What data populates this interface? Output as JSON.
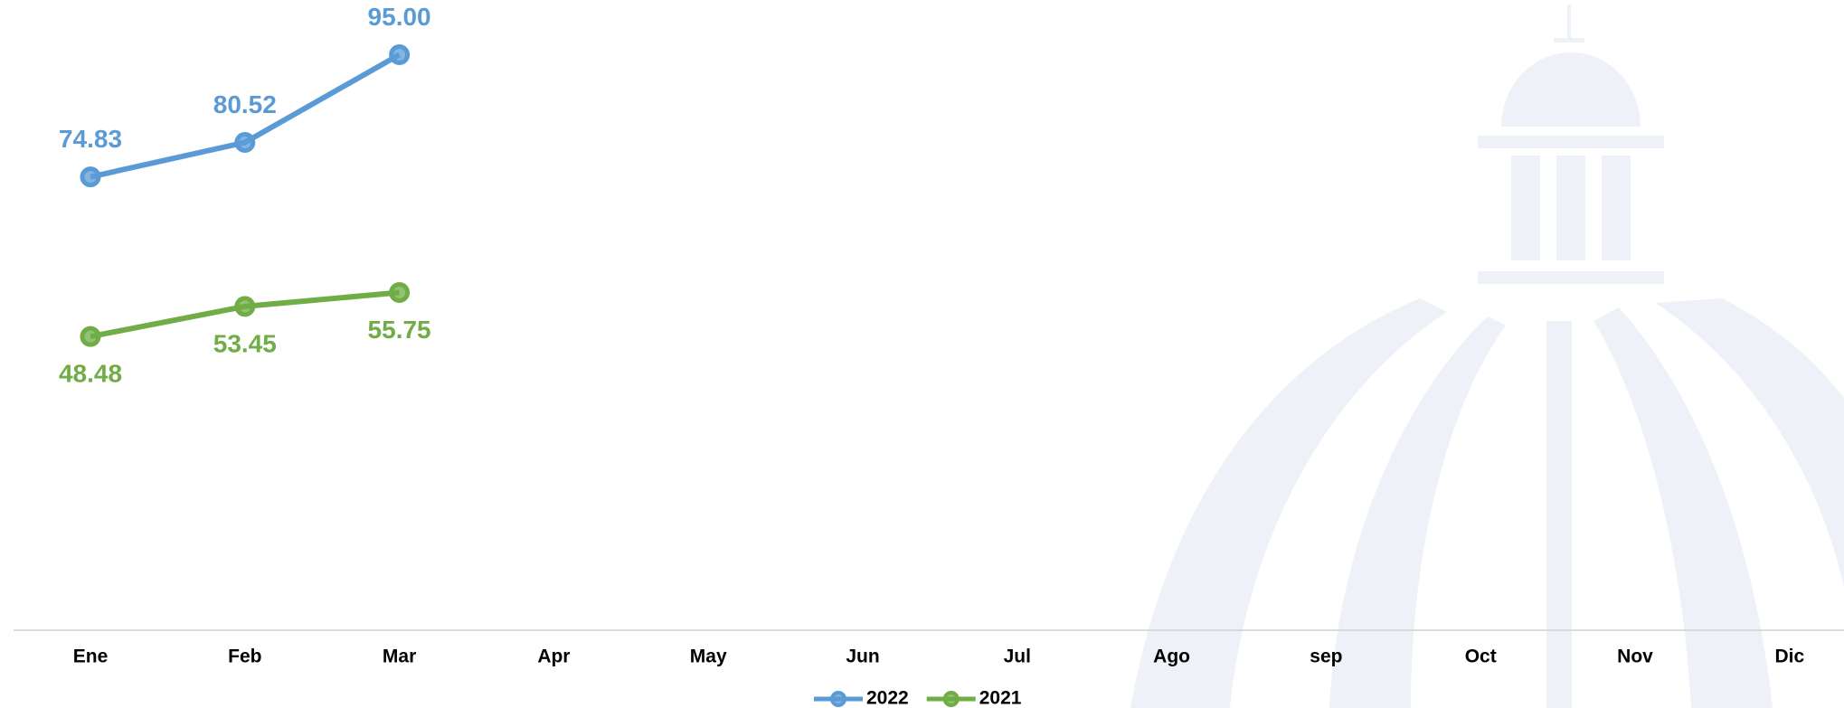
{
  "chart_data": {
    "type": "line",
    "categories": [
      "Ene",
      "Feb",
      "Mar",
      "Apr",
      "May",
      "Jun",
      "Jul",
      "Ago",
      "sep",
      "Oct",
      "Nov",
      "Dic"
    ],
    "series": [
      {
        "name": "2022",
        "color": "#5b9bd5",
        "values": [
          74.83,
          80.52,
          95.0,
          null,
          null,
          null,
          null,
          null,
          null,
          null,
          null,
          null
        ],
        "value_labels": [
          "74.83",
          "80.52",
          "95.00",
          null,
          null,
          null,
          null,
          null,
          null,
          null,
          null,
          null
        ]
      },
      {
        "name": "2021",
        "color": "#70ad47",
        "values": [
          48.48,
          53.45,
          55.75,
          null,
          null,
          null,
          null,
          null,
          null,
          null,
          null,
          null
        ],
        "value_labels": [
          "48.48",
          "53.45",
          "55.75",
          null,
          null,
          null,
          null,
          null,
          null,
          null,
          null,
          null
        ]
      }
    ],
    "legend": "bottom"
  }
}
